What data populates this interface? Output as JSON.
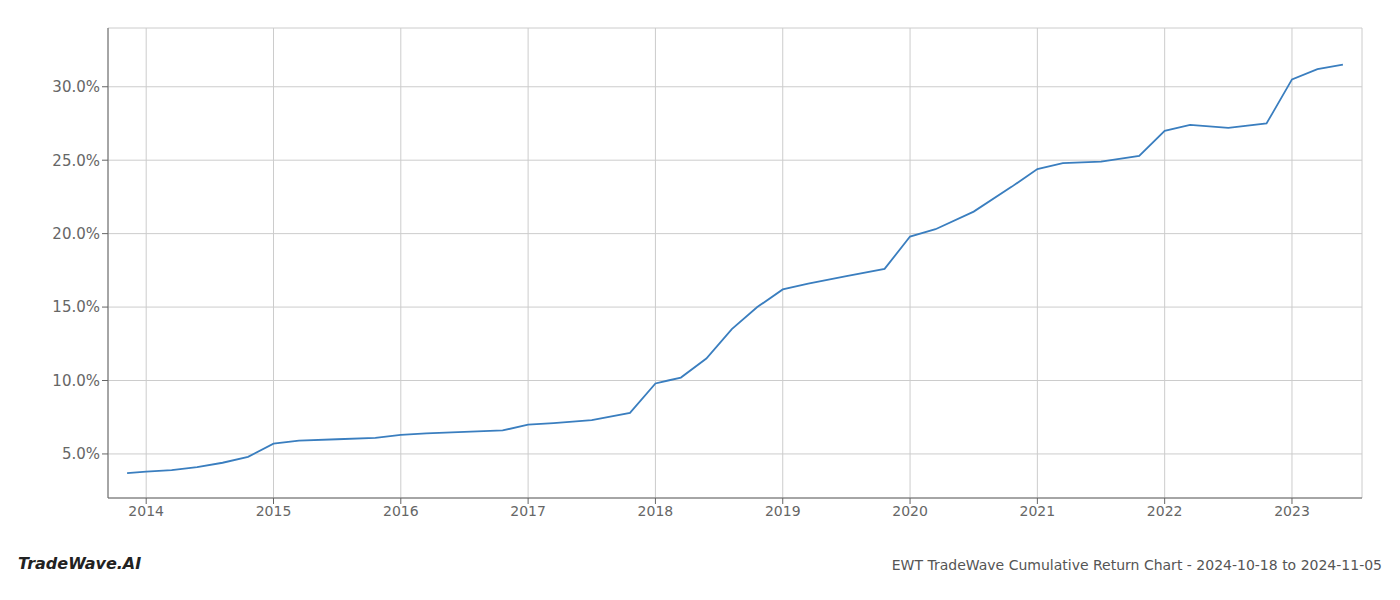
{
  "chart_data": {
    "type": "line",
    "title": "EWT TradeWave Cumulative Return Chart - 2024-10-18 to 2024-11-05",
    "annotations": [
      "TradeWave.AI"
    ],
    "color": "#3a7ebf",
    "grid": true,
    "x": [
      2013.85,
      2014.0,
      2014.2,
      2014.4,
      2014.6,
      2014.8,
      2015.0,
      2015.2,
      2015.5,
      2015.8,
      2016.0,
      2016.2,
      2016.5,
      2016.8,
      2017.0,
      2017.2,
      2017.5,
      2017.8,
      2018.0,
      2018.1,
      2018.2,
      2018.4,
      2018.6,
      2018.8,
      2019.0,
      2019.2,
      2019.5,
      2019.8,
      2020.0,
      2020.2,
      2020.5,
      2020.8,
      2021.0,
      2021.2,
      2021.5,
      2021.8,
      2022.0,
      2022.2,
      2022.5,
      2022.8,
      2023.0,
      2023.2,
      2023.4
    ],
    "values": [
      3.7,
      3.8,
      3.9,
      4.1,
      4.4,
      4.8,
      5.7,
      5.9,
      6.0,
      6.1,
      6.3,
      6.4,
      6.5,
      6.6,
      7.0,
      7.1,
      7.3,
      7.8,
      9.8,
      10.0,
      10.2,
      11.5,
      13.5,
      15.0,
      16.2,
      16.6,
      17.1,
      17.6,
      19.8,
      20.3,
      21.5,
      23.2,
      24.4,
      24.8,
      24.9,
      25.3,
      27.0,
      27.4,
      27.2,
      27.5,
      30.5,
      31.2,
      31.5
    ],
    "xlim": [
      2013.7,
      2023.55
    ],
    "xticks": [
      2014,
      2015,
      2016,
      2017,
      2018,
      2019,
      2020,
      2021,
      2022,
      2023
    ],
    "ylim": [
      2.0,
      34.0
    ],
    "yticks": [
      {
        "value": 5.0,
        "label": "5.0%"
      },
      {
        "value": 10.0,
        "label": "10.0%"
      },
      {
        "value": 15.0,
        "label": "15.0%"
      },
      {
        "value": 20.0,
        "label": "20.0%"
      },
      {
        "value": 25.0,
        "label": "25.0%"
      },
      {
        "value": 30.0,
        "label": "30.0%"
      }
    ]
  }
}
